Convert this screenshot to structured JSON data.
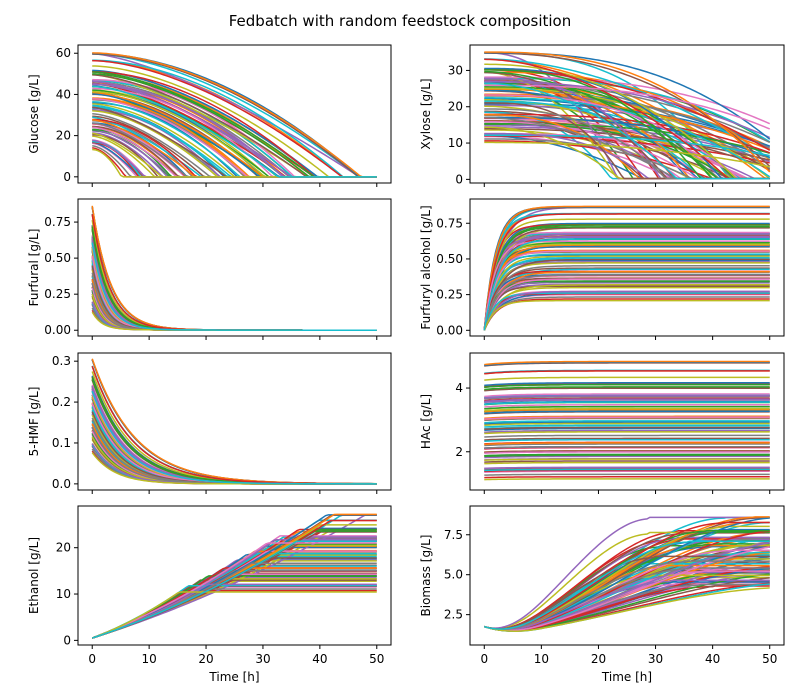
{
  "chart_data": {
    "type": "line",
    "title": "Fedbatch with random feedstock composition",
    "xlabel": "Time [h]",
    "x_ticks": [
      0,
      10,
      20,
      30,
      40,
      50
    ],
    "xlim": [
      -2.5,
      52.5
    ],
    "series_colors": [
      "#1f77b4",
      "#ff7f0e",
      "#2ca02c",
      "#d62728",
      "#9467bd",
      "#8c564b",
      "#e377c2",
      "#7f7f7f",
      "#bcbd22",
      "#17becf"
    ],
    "panels": [
      {
        "ylabel": "Glucose [g/L]",
        "ylim": [
          -3,
          64
        ],
        "y_ticks": [
          0,
          20,
          40,
          60
        ],
        "y_tick_labels": [
          "0",
          "20",
          "40",
          "60"
        ],
        "profile": "depletion",
        "initial_range": [
          12,
          61
        ]
      },
      {
        "ylabel": "Xylose [g/L]",
        "ylim": [
          -1,
          37
        ],
        "y_ticks": [
          0,
          10,
          20,
          30
        ],
        "y_tick_labels": [
          "0",
          "10",
          "20",
          "30"
        ],
        "profile": "slow_depletion",
        "initial_range": [
          9.5,
          35.5
        ]
      },
      {
        "ylabel": "Furfural [g/L]",
        "ylim": [
          -0.04,
          0.91
        ],
        "y_ticks": [
          0,
          0.25,
          0.5,
          0.75
        ],
        "y_tick_labels": [
          "0.00",
          "0.25",
          "0.50",
          "0.75"
        ],
        "profile": "fast_decay",
        "initial_range": [
          0.1,
          0.87
        ]
      },
      {
        "ylabel": "Furfuryl alcohol [g/L]",
        "ylim": [
          -0.04,
          0.92
        ],
        "y_ticks": [
          0,
          0.25,
          0.5,
          0.75
        ],
        "y_tick_labels": [
          "0.00",
          "0.25",
          "0.50",
          "0.75"
        ],
        "profile": "saturation",
        "final_range": [
          0.19,
          0.88
        ]
      },
      {
        "ylabel": "5-HMF [g/L]",
        "ylim": [
          -0.015,
          0.32
        ],
        "y_ticks": [
          0,
          0.1,
          0.2,
          0.3
        ],
        "y_tick_labels": [
          "0.0",
          "0.1",
          "0.2",
          "0.3"
        ],
        "profile": "decay",
        "initial_range": [
          0.07,
          0.31
        ]
      },
      {
        "ylabel": "HAc [g/L]",
        "ylim": [
          0.8,
          5.1
        ],
        "y_ticks": [
          2,
          4
        ],
        "y_tick_labels": [
          "2",
          "4"
        ],
        "profile": "flat",
        "final_range": [
          1.05,
          4.9
        ]
      },
      {
        "ylabel": "Ethanol [g/L]",
        "ylim": [
          -1,
          29
        ],
        "y_ticks": [
          0,
          10,
          20
        ],
        "y_tick_labels": [
          "0",
          "10",
          "20"
        ],
        "profile": "rise_plateau",
        "initial_value": 0.5,
        "final_range": [
          10,
          27.5
        ]
      },
      {
        "ylabel": "Biomass [g/L]",
        "ylim": [
          0.6,
          9.3
        ],
        "y_ticks": [
          2.5,
          5.0,
          7.5
        ],
        "y_tick_labels": [
          "2.5",
          "5.0",
          "7.5"
        ],
        "profile": "dip_growth",
        "initial_value": 1.75,
        "final_range": [
          4.1,
          8.7
        ]
      }
    ]
  }
}
